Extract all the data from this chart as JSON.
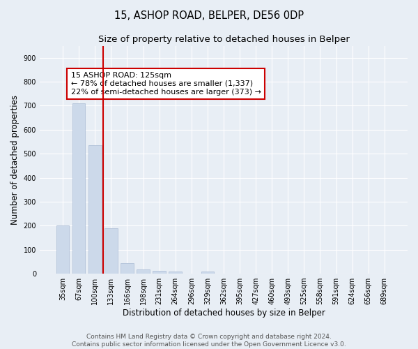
{
  "title": "15, ASHOP ROAD, BELPER, DE56 0DP",
  "subtitle": "Size of property relative to detached houses in Belper",
  "xlabel": "Distribution of detached houses by size in Belper",
  "ylabel": "Number of detached properties",
  "categories": [
    "35sqm",
    "67sqm",
    "100sqm",
    "133sqm",
    "166sqm",
    "198sqm",
    "231sqm",
    "264sqm",
    "296sqm",
    "329sqm",
    "362sqm",
    "395sqm",
    "427sqm",
    "460sqm",
    "493sqm",
    "525sqm",
    "558sqm",
    "591sqm",
    "624sqm",
    "656sqm",
    "689sqm"
  ],
  "values": [
    200,
    710,
    535,
    190,
    43,
    18,
    13,
    9,
    0,
    8,
    0,
    0,
    0,
    0,
    0,
    0,
    0,
    0,
    0,
    0,
    0
  ],
  "bar_color": "#ccd9ea",
  "bar_edge_color": "#aabbd4",
  "vline_x": 2.5,
  "vline_color": "#cc0000",
  "annotation_text": "15 ASHOP ROAD: 125sqm\n← 78% of detached houses are smaller (1,337)\n22% of semi-detached houses are larger (373) →",
  "annotation_box_color": "white",
  "annotation_box_edge_color": "#cc0000",
  "ylim": [
    0,
    950
  ],
  "yticks": [
    0,
    100,
    200,
    300,
    400,
    500,
    600,
    700,
    800,
    900
  ],
  "bg_color": "#e8eef5",
  "plot_bg_color": "#e8eef5",
  "grid_color": "white",
  "footer_text": "Contains HM Land Registry data © Crown copyright and database right 2024.\nContains public sector information licensed under the Open Government Licence v3.0.",
  "title_fontsize": 10.5,
  "subtitle_fontsize": 9.5,
  "xlabel_fontsize": 8.5,
  "ylabel_fontsize": 8.5,
  "tick_fontsize": 7,
  "annotation_fontsize": 8,
  "footer_fontsize": 6.5
}
